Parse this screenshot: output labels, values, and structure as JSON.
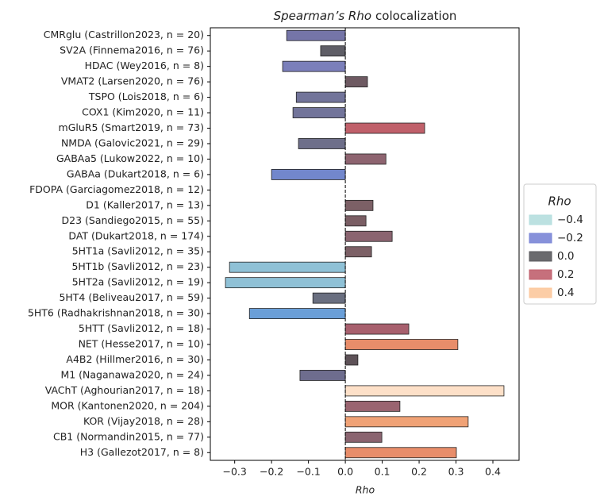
{
  "chart_data": {
    "type": "barh",
    "title": [
      "Spearman’s Rho",
      "colocalization"
    ],
    "xlabel": "Rho",
    "categories": [
      "CMRglu (Castrillon2023, n = 20)",
      "SV2A (Finnema2016, n = 76)",
      "HDAC (Wey2016, n = 8)",
      "VMAT2 (Larsen2020, n = 76)",
      "TSPO (Lois2018, n = 6)",
      "COX1 (Kim2020, n = 11)",
      "mGluR5 (Smart2019, n = 73)",
      "NMDA (Galovic2021, n = 29)",
      "GABAa5 (Lukow2022, n = 10)",
      "GABAa (Dukart2018, n = 6)",
      "FDOPA (Garciagomez2018, n = 12)",
      "D1 (Kaller2017, n = 13)",
      "D23 (Sandiego2015, n = 55)",
      "DAT (Dukart2018, n = 174)",
      "5HT1a (Savli2012, n = 35)",
      "5HT1b (Savli2012, n = 23)",
      "5HT2a (Savli2012, n = 19)",
      "5HT4 (Beliveau2017, n = 59)",
      "5HT6 (Radhakrishnan2018, n = 30)",
      "5HTT (Savli2012, n = 18)",
      "NET (Hesse2017, n = 10)",
      "A4B2 (Hillmer2016, n = 30)",
      "M1 (Naganawa2020, n = 24)",
      "VAChT (Aghourian2017, n = 18)",
      "MOR (Kantonen2020, n = 204)",
      "KOR (Vijay2018, n = 28)",
      "CB1 (Normandin2015, n = 77)",
      "H3 (Gallezot2017, n = 8)"
    ],
    "values": [
      -0.159,
      -0.067,
      -0.17,
      0.06,
      -0.133,
      -0.142,
      0.215,
      -0.127,
      0.11,
      -0.2,
      0,
      0.075,
      0.056,
      0.127,
      0.071,
      -0.314,
      -0.325,
      -0.088,
      -0.26,
      0.172,
      0.305,
      0.034,
      -0.123,
      0.43,
      0.148,
      0.333,
      0.099,
      0.301
    ],
    "colors": [
      "#7575a8",
      "#5f5e66",
      "#7b7fba",
      "#6e5a62",
      "#72749a",
      "#72749a",
      "#c0606a",
      "#6e6f8a",
      "#8e6470",
      "#7287cc",
      "#5f5e66",
      "#7c6066",
      "#7a5e64",
      "#8a6470",
      "#7c6066",
      "#8fc1d6",
      "#8fc1d6",
      "#6a6f80",
      "#6a9fd8",
      "#a8606e",
      "#e88d6a",
      "#5e5258",
      "#6e6d8e",
      "#fde0c8",
      "#9a6470",
      "#f0a276",
      "#8a6470",
      "#e88d6a"
    ],
    "xlim": [
      -0.366,
      0.471
    ],
    "xticks": [
      {
        "value": -0.3,
        "label": "−0.3"
      },
      {
        "value": -0.2,
        "label": "−0.2"
      },
      {
        "value": -0.1,
        "label": "−0.1"
      },
      {
        "value": 0,
        "label": "0.0"
      },
      0.1,
      0.2,
      0.3,
      0.4
    ],
    "legend": {
      "title": "Rho",
      "position": "right",
      "items": [
        {
          "label": "−0.4",
          "color": "#b5dede"
        },
        {
          "label": "−0.2",
          "color": "#7a85d6"
        },
        {
          "label": "0.0",
          "color": "#5a5a5e"
        },
        {
          "label": "0.2",
          "color": "#c0606e"
        },
        {
          "label": "0.4",
          "color": "#fcc89c"
        }
      ]
    }
  }
}
